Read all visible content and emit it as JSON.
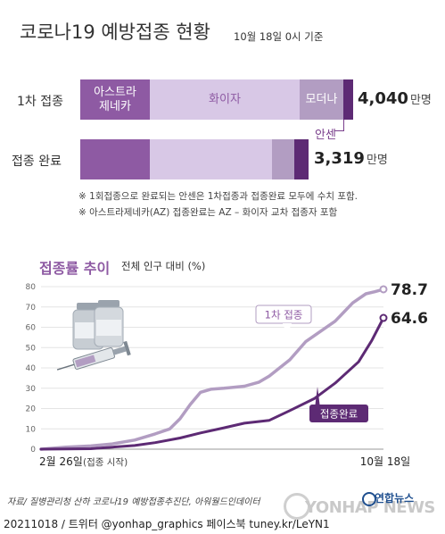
{
  "header": {
    "title": "코로나19 예방접종 현황",
    "base_date": "10월 18일 0시 기준"
  },
  "status": {
    "rows": [
      {
        "label": "1차 접종",
        "total": "4,040",
        "unit": "만명",
        "segments": [
          {
            "name": "아스트라제네카",
            "label_lines": [
              "아스트라",
              "제네카"
            ],
            "color": "#8e5aa3"
          },
          {
            "name": "화이자",
            "label_lines": [
              "화이자"
            ],
            "color": "#d8c8e6"
          },
          {
            "name": "모더나",
            "label_lines": [
              "모더나"
            ],
            "color": "#b29dc2"
          },
          {
            "name": "안센",
            "label_lines": [],
            "color": "#5d2a74"
          }
        ]
      },
      {
        "label": "접종 완료",
        "total": "3,319",
        "unit": "만명",
        "segments": [
          {
            "name": "아스트라제네카",
            "label_lines": [],
            "color": "#8e5aa3"
          },
          {
            "name": "화이자",
            "label_lines": [],
            "color": "#d8c8e6"
          },
          {
            "name": "모더나",
            "label_lines": [],
            "color": "#b29dc2"
          },
          {
            "name": "안센",
            "label_lines": [],
            "color": "#5d2a74"
          }
        ]
      }
    ],
    "janssen_label": "안센",
    "notes": [
      "※ 1회접종으로 완료되는 안센은 1차접종과 접종완료 모두에 수치 포함.",
      "※ 아스트라제네카(AZ) 접종완료는 AZ – 화이자 교차 접종자 포함"
    ]
  },
  "trend": {
    "title": "접종률 추이",
    "subtitle": "전체 인구 대비 (%)"
  },
  "chart_data": {
    "type": "line",
    "title": "접종률 추이",
    "ylabel": "전체 인구 대비 (%)",
    "ylim": [
      0,
      80
    ],
    "yticks": [
      0,
      10,
      20,
      30,
      40,
      50,
      60,
      70,
      80
    ],
    "x_start_label": "2월 26일",
    "x_start_note": "(접종 시작)",
    "x_end_label": "10월 18일",
    "grid": true,
    "series": [
      {
        "name": "1차 접종",
        "color": "#b29dc2",
        "end_label": "78.7",
        "x": [
          "2021-02-26",
          "2021-03-15",
          "2021-04-01",
          "2021-04-15",
          "2021-05-01",
          "2021-05-15",
          "2021-05-25",
          "2021-06-01",
          "2021-06-08",
          "2021-06-15",
          "2021-06-22",
          "2021-07-01",
          "2021-07-15",
          "2021-07-25",
          "2021-08-01",
          "2021-08-15",
          "2021-08-26",
          "2021-09-01",
          "2021-09-15",
          "2021-09-27",
          "2021-10-06",
          "2021-10-12",
          "2021-10-18"
        ],
        "values": [
          0,
          1.0,
          1.6,
          2.5,
          4.5,
          7.5,
          10,
          15,
          22,
          28,
          29.5,
          30,
          31,
          33,
          36,
          44,
          53,
          56,
          63,
          72,
          76.5,
          77.5,
          78.7
        ]
      },
      {
        "name": "접종완료",
        "color": "#5d2a74",
        "end_label": "64.6",
        "x": [
          "2021-02-26",
          "2021-04-01",
          "2021-05-01",
          "2021-05-15",
          "2021-06-01",
          "2021-06-15",
          "2021-07-01",
          "2021-07-15",
          "2021-08-01",
          "2021-08-15",
          "2021-09-01",
          "2021-09-15",
          "2021-10-01",
          "2021-10-10",
          "2021-10-18"
        ],
        "values": [
          0,
          0.2,
          1.8,
          3.2,
          5.5,
          8,
          10.5,
          12.8,
          14.2,
          19,
          25,
          32.5,
          43,
          53.5,
          64.6
        ]
      }
    ]
  },
  "footer": {
    "source": "자료/ 질병관리청 산하 코로나19 예방접종추진단, 아워월드인데이터",
    "credit": "20211018 / 트위터 @yonhap_graphics  페이스북 tuney.kr/LeYN1",
    "agency": "연합뉴스",
    "watermark": "YONHAP NEWS"
  }
}
